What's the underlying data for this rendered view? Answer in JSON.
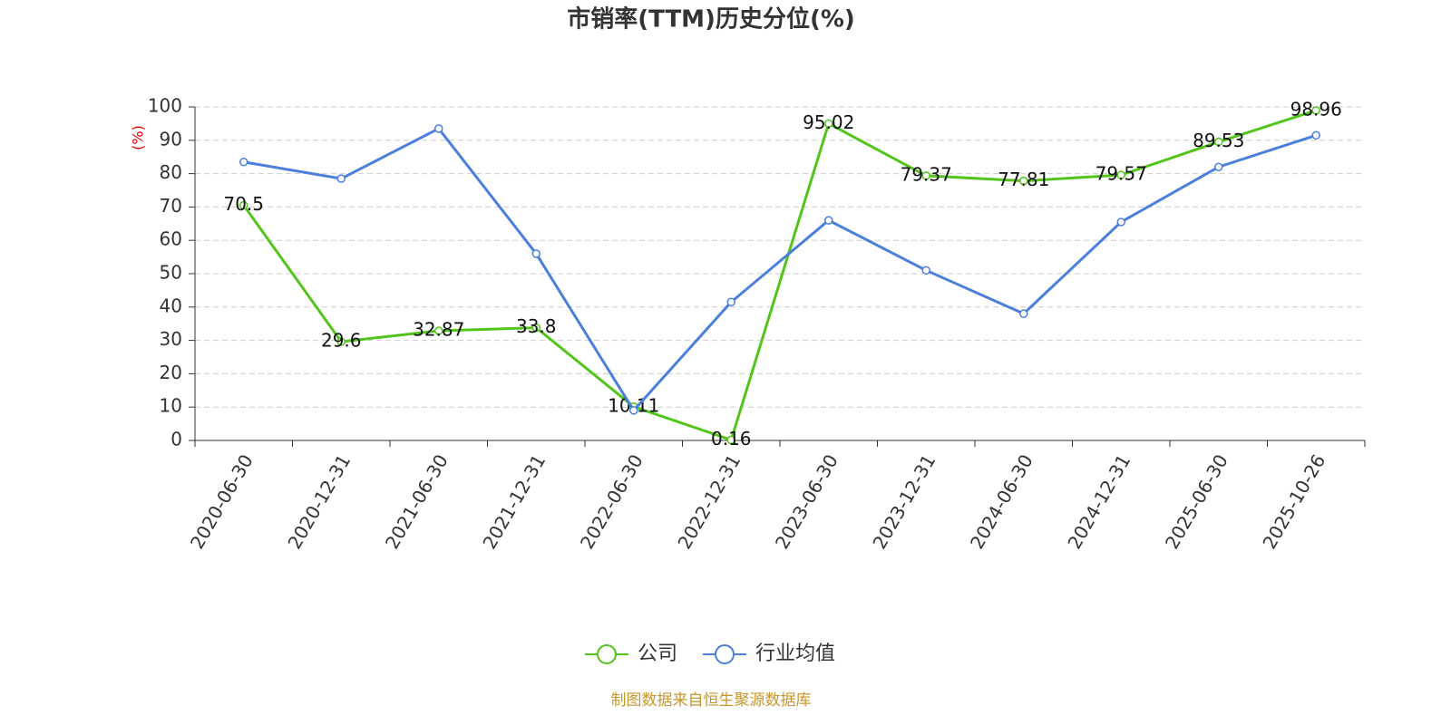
{
  "chart_data": {
    "type": "line",
    "title": "市销率(TTM)历史分位(%)",
    "y_label": "(%)",
    "categories": [
      "2020-06-30",
      "2020-12-31",
      "2021-06-30",
      "2021-12-31",
      "2022-06-30",
      "2022-12-31",
      "2023-06-30",
      "2023-12-31",
      "2024-06-30",
      "2024-12-31",
      "2025-06-30",
      "2025-10-26"
    ],
    "series": [
      {
        "name": "公司",
        "color": "#52c41a",
        "values": [
          70.5,
          29.6,
          32.87,
          33.8,
          10.11,
          0.16,
          95.02,
          79.37,
          77.81,
          79.57,
          89.53,
          98.96
        ],
        "show_labels": true
      },
      {
        "name": "行业均值",
        "color": "#4a7fdc",
        "values": [
          83.5,
          78.5,
          93.5,
          56,
          9,
          41.5,
          66,
          51,
          38,
          65.5,
          82,
          91.5
        ],
        "show_labels": false
      }
    ],
    "ylim": [
      0,
      100
    ],
    "yticks": [
      0,
      10,
      20,
      30,
      40,
      50,
      60,
      70,
      80,
      90,
      100
    ],
    "grid": true,
    "legend": "bottom",
    "source": "制图数据来自恒生聚源数据库"
  }
}
